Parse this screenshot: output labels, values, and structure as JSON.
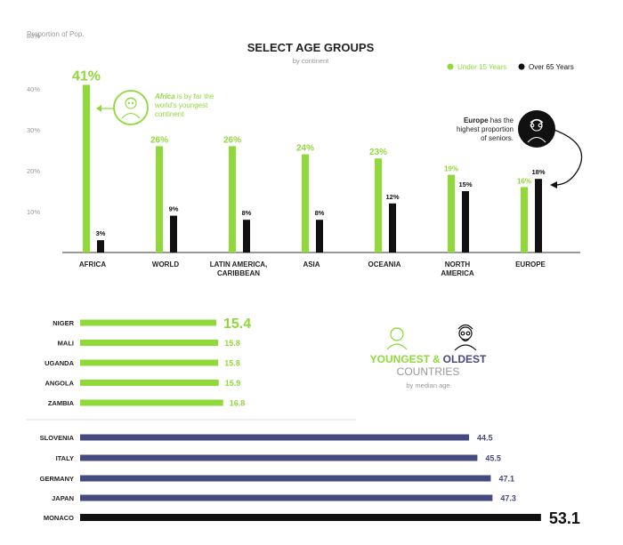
{
  "colors": {
    "green": "#8fd93a",
    "black": "#111111",
    "navy": "#454a80",
    "grey": "#999999",
    "dark": "#222222"
  },
  "chart_data": [
    {
      "type": "bar",
      "title": "SELECT AGE GROUPS",
      "subtitle": "by continent",
      "ylabel": "Proportion of Pop.",
      "ylim": [
        0,
        80
      ],
      "yticks": [
        "80%",
        "40%",
        "30%",
        "20%",
        "10%"
      ],
      "categories": [
        "AFRICA",
        "WORLD",
        "LATIN AMERICA, CARIBBEAN",
        "ASIA",
        "OCEANIA",
        "NORTH AMERICA",
        "EUROPE"
      ],
      "category_lines": [
        [
          "AFRICA"
        ],
        [
          "WORLD"
        ],
        [
          "LATIN AMERICA,",
          "CARIBBEAN"
        ],
        [
          "ASIA"
        ],
        [
          "OCEANIA"
        ],
        [
          "NORTH",
          "AMERICA"
        ],
        [
          "EUROPE"
        ]
      ],
      "series": [
        {
          "name": "Under 15 Years",
          "color": "#8fd93a",
          "values": [
            41,
            26,
            26,
            24,
            23,
            19,
            16
          ],
          "labels": [
            "41%",
            "26%",
            "26%",
            "24%",
            "23%",
            "19%",
            "16%"
          ]
        },
        {
          "name": "Over 65 Years",
          "color": "#111111",
          "values": [
            3,
            9,
            8,
            8,
            12,
            15,
            18
          ],
          "labels": [
            "3%",
            "9%",
            "8%",
            "8%",
            "12%",
            "15%",
            "18%"
          ]
        }
      ],
      "legend_position": "top-right",
      "annotations": {
        "africa": {
          "bold": "Africa",
          "lines": [
            " is by far the",
            "world's youngest",
            "continent"
          ]
        },
        "europe": {
          "bold": "Europe",
          "lines": [
            " has the",
            "highest proportion",
            "of seniors."
          ]
        }
      }
    },
    {
      "type": "bar",
      "orientation": "horizontal",
      "title_left": "YOUNGEST",
      "title_amp": "&",
      "title_right": "OLDEST",
      "title_line2": "COUNTRIES",
      "subtitle": "by median age",
      "youngest": {
        "categories": [
          "NIGER",
          "MALI",
          "UGANDA",
          "ANGOLA",
          "ZAMBIA"
        ],
        "values": [
          15.4,
          15.8,
          15.8,
          15.9,
          16.8
        ],
        "labels": [
          "15.4",
          "15.8",
          "15.8",
          "15.9",
          "16.8"
        ]
      },
      "oldest": {
        "categories": [
          "SLOVENIA",
          "ITALY",
          "GERMANY",
          "JAPAN",
          "MONACO"
        ],
        "values": [
          44.5,
          45.5,
          47.1,
          47.3,
          53.1
        ],
        "labels": [
          "44.5",
          "45.5",
          "47.1",
          "47.3",
          "53.1"
        ]
      }
    }
  ]
}
